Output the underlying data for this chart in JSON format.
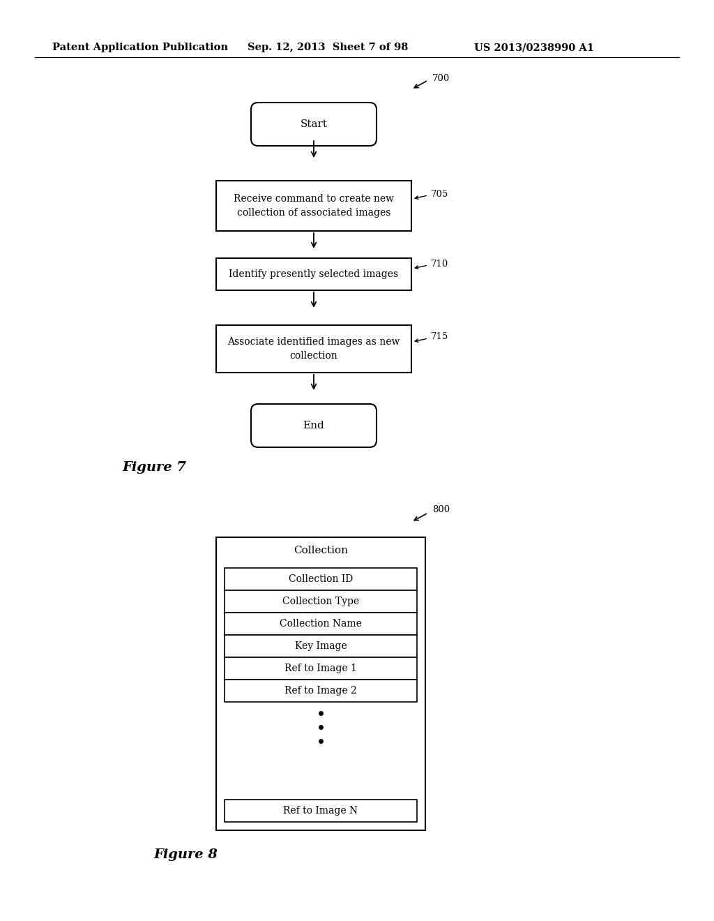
{
  "bg_color": "#ffffff",
  "header_text": [
    "Patent Application Publication",
    "Sep. 12, 2013  Sheet 7 of 98",
    "US 2013/0238990 A1"
  ],
  "header_fontsize": 10.5,
  "fig7_caption": "Figure 7",
  "fig8_caption": "Figure 8",
  "fig7_label": "700",
  "fig8_label": "800",
  "start_text": "Start",
  "end_text": "End",
  "box705_text": "Receive command to create new\ncollection of associated images",
  "box710_text": "Identify presently selected images",
  "box715_text": "Associate identified images as new\ncollection",
  "label705": "705",
  "label710": "710",
  "label715": "715",
  "fig8_title": "Collection",
  "fig8_rows": [
    "Collection ID",
    "Collection Type",
    "Collection Name",
    "Key Image",
    "Ref to Image 1",
    "Ref to Image 2"
  ],
  "fig8_last_row": "Ref to Image N"
}
